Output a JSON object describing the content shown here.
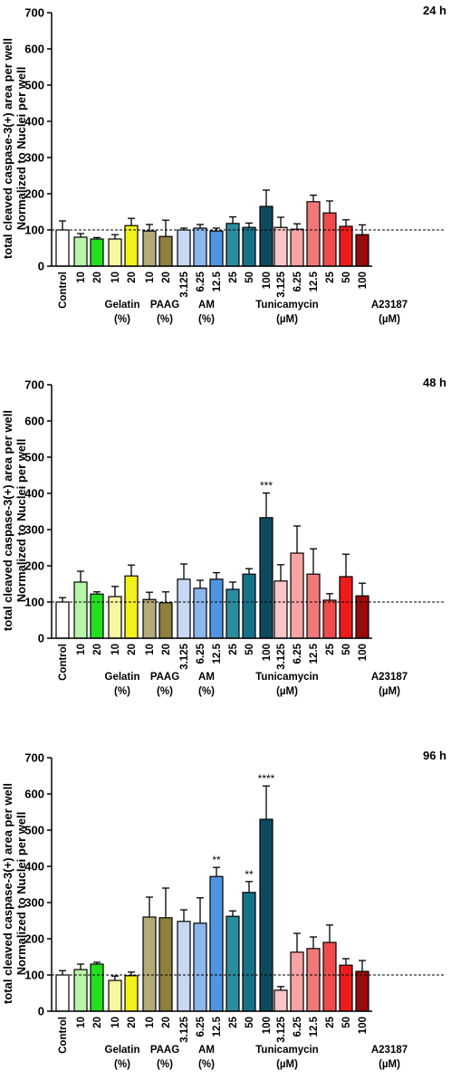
{
  "chart_data": [
    {
      "type": "bar",
      "title": "24 h",
      "ylabel_line1": "total cleaved caspase-3(+) area per well",
      "ylabel_line2": "Normalized to Nuclei per well",
      "ylim": [
        0,
        700
      ],
      "yticks": [
        0,
        100,
        200,
        300,
        400,
        500,
        600,
        700
      ],
      "reference_line": 100,
      "categories": [
        "Control",
        "10",
        "20",
        "10",
        "20",
        "10",
        "20",
        "3.125",
        "6.25",
        "12.5",
        "25",
        "50",
        "100",
        "3.125",
        "6.25",
        "12.5",
        "25",
        "50",
        "100"
      ],
      "groups": [
        "Gelatin",
        "(%)",
        "PAAG",
        "(%)",
        "AM",
        "(%)",
        "Tunicamycin",
        "(µM)",
        "A23187",
        "(µM)"
      ],
      "values": [
        100,
        80,
        75,
        75,
        112,
        97,
        82,
        100,
        105,
        97,
        118,
        107,
        165,
        107,
        102,
        178,
        147,
        110,
        87
      ],
      "errors": [
        25,
        10,
        4,
        12,
        20,
        18,
        45,
        5,
        10,
        8,
        18,
        12,
        45,
        28,
        15,
        18,
        33,
        18,
        27
      ],
      "significance": [
        "",
        "",
        "",
        "",
        "",
        "",
        "",
        "",
        "",
        "",
        "",
        "",
        "",
        "",
        "",
        "",
        "",
        "",
        ""
      ]
    },
    {
      "type": "bar",
      "title": "48 h",
      "ylabel_line1": "total cleaved caspase-3(+) area per well",
      "ylabel_line2": "Normalized to Nuclei per well",
      "ylim": [
        0,
        700
      ],
      "yticks": [
        0,
        100,
        200,
        300,
        400,
        500,
        600,
        700
      ],
      "reference_line": 100,
      "categories": [
        "Control",
        "10",
        "20",
        "10",
        "20",
        "10",
        "20",
        "3.125",
        "6.25",
        "12.5",
        "25",
        "50",
        "100",
        "3.125",
        "6.25",
        "12.5",
        "25",
        "50",
        "100"
      ],
      "groups": [
        "Gelatin",
        "(%)",
        "PAAG",
        "(%)",
        "AM",
        "(%)",
        "Tunicamycin",
        "(µM)",
        "A23187",
        "(µM)"
      ],
      "values": [
        100,
        155,
        122,
        115,
        172,
        107,
        98,
        163,
        138,
        163,
        135,
        177,
        333,
        158,
        235,
        177,
        105,
        170,
        117
      ],
      "errors": [
        12,
        30,
        6,
        28,
        30,
        20,
        30,
        42,
        22,
        18,
        20,
        15,
        68,
        45,
        75,
        70,
        18,
        62,
        35
      ],
      "significance": [
        "",
        "",
        "",
        "",
        "",
        "",
        "",
        "",
        "",
        "",
        "",
        "",
        "***",
        "",
        "",
        "",
        "",
        "",
        ""
      ]
    },
    {
      "type": "bar",
      "title": "96 h",
      "ylabel_line1": "total cleaved caspase-3(+) area per well",
      "ylabel_line2": "Normalized to Nuclei per well",
      "ylim": [
        0,
        700
      ],
      "yticks": [
        0,
        100,
        200,
        300,
        400,
        500,
        600,
        700
      ],
      "reference_line": 100,
      "categories": [
        "Control",
        "10",
        "20",
        "10",
        "20",
        "10",
        "20",
        "3.125",
        "6.25",
        "12.5",
        "25",
        "50",
        "100",
        "3.125",
        "6.25",
        "12.5",
        "25",
        "50",
        "100"
      ],
      "groups": [
        "Gelatin",
        "(%)",
        "PAAG",
        "(%)",
        "AM",
        "(%)",
        "Tunicamycin",
        "(µM)",
        "A23187",
        "(µM)"
      ],
      "values": [
        100,
        115,
        130,
        85,
        98,
        260,
        258,
        248,
        243,
        372,
        262,
        328,
        530,
        58,
        163,
        173,
        190,
        127,
        110
      ],
      "errors": [
        12,
        15,
        5,
        12,
        10,
        55,
        82,
        32,
        70,
        25,
        15,
        30,
        92,
        10,
        52,
        32,
        48,
        18,
        30
      ],
      "significance": [
        "",
        "",
        "",
        "",
        "",
        "",
        "",
        "",
        "",
        "**",
        "",
        "**",
        "****",
        "",
        "",
        "",
        "",
        "",
        ""
      ]
    }
  ],
  "colors": [
    "#ffffff",
    "#b6f5a8",
    "#22e01e",
    "#f7f5a0",
    "#f2f21a",
    "#b2aa77",
    "#8c7f40",
    "#c6d8f2",
    "#8cb6ec",
    "#4f95e0",
    "#2b8c9e",
    "#16728a",
    "#0d4a60",
    "#f8c6c6",
    "#f5a3a3",
    "#f07878",
    "#ef4b4b",
    "#ee1b1b",
    "#9a0a0a"
  ]
}
